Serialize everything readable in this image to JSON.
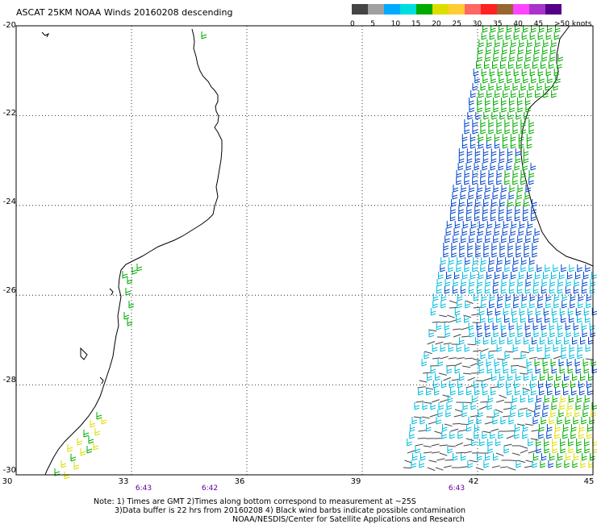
{
  "title": "ASCAT 25KM NOAA Winds 20160208 descending",
  "scale": {
    "colors": [
      "#444444",
      "#a0a0a0",
      "#00aaff",
      "#00dddd",
      "#00aa00",
      "#dddd00",
      "#ffcc33",
      "#ff6666",
      "#ff2222",
      "#996633",
      "#ff44ff",
      "#aa33cc",
      "#550088"
    ],
    "labels": [
      "0",
      "5",
      "10",
      "15",
      "20",
      "25",
      "30",
      "35",
      "40",
      "45",
      ">50 knots"
    ]
  },
  "axes": {
    "lat_labels": [
      "-20",
      "-22",
      "-24",
      "-26",
      "-28",
      "-30"
    ],
    "lon_labels": [
      "30",
      "33",
      "36",
      "39",
      "42",
      "45"
    ]
  },
  "pass_times": [
    "6:43",
    "6:42",
    "6:43"
  ],
  "notes": [
    "Note: 1) Times are GMT 2)Times along bottom correspond to measurement at ~25S",
    "3)Data buffer is 22 hrs from 20160208 4) Black wind barbs indicate possible contamination",
    "NOAA/NESDIS/Center for Satellite Applications and Research"
  ],
  "icons": {
    "wind_barb": "wind-barb-icon"
  }
}
